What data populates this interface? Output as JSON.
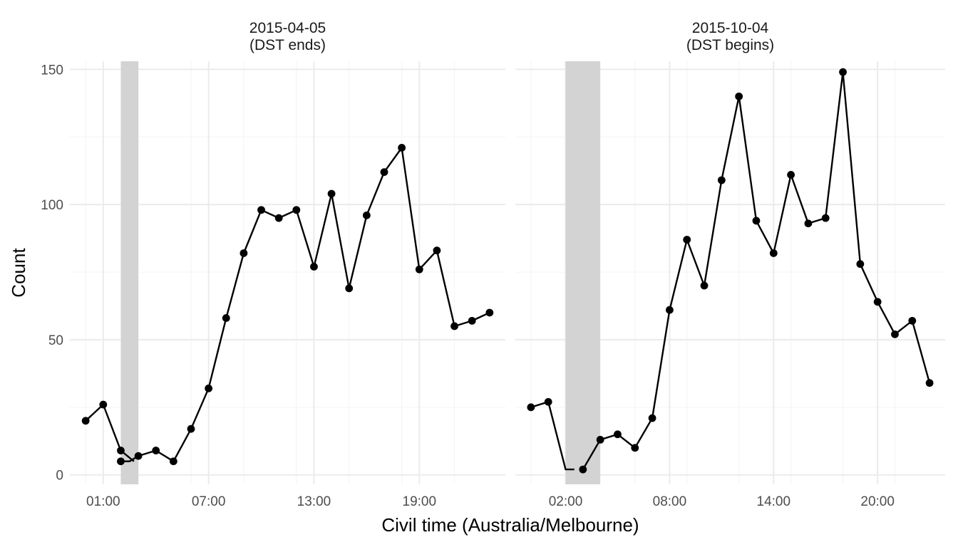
{
  "chart_data": {
    "type": "line",
    "xlabel": "Civil time (Australia/Melbourne)",
    "ylabel": "Count",
    "ylim": [
      -3.5,
      153
    ],
    "yticks": [
      0,
      50,
      100,
      150
    ],
    "grid": true,
    "colors": {
      "line": "#000000",
      "point": "#000000",
      "band": "#d3d3d3",
      "major_grid": "#ebebeb",
      "minor_grid": "#f5f5f5"
    },
    "panels": [
      {
        "strip": [
          "2015-04-05",
          "(DST ends)"
        ],
        "x_range": [
          "2015-04-05 00:00",
          "2015-04-05 23:00"
        ],
        "x_ticks": [
          "01:00",
          "07:00",
          "13:00",
          "19:00"
        ],
        "shaded_interval": [
          "02:00",
          "03:00"
        ],
        "series": [
          {
            "segments": [
              [
                {
                  "x": "00:00",
                  "y": 20
                },
                {
                  "x": "01:00",
                  "y": 26
                },
                {
                  "x": "02:00",
                  "y": 9
                },
                {
                  "x": "02:45",
                  "y": 5
                }
              ],
              [
                {
                  "x": "02:00",
                  "y": 5
                },
                {
                  "x": "02:30",
                  "y": 5
                },
                {
                  "x": "03:00",
                  "y": 7
                },
                {
                  "x": "04:00",
                  "y": 9
                },
                {
                  "x": "05:00",
                  "y": 5
                },
                {
                  "x": "06:00",
                  "y": 17
                },
                {
                  "x": "07:00",
                  "y": 32
                },
                {
                  "x": "08:00",
                  "y": 58
                },
                {
                  "x": "09:00",
                  "y": 82
                },
                {
                  "x": "10:00",
                  "y": 98
                },
                {
                  "x": "11:00",
                  "y": 95
                },
                {
                  "x": "12:00",
                  "y": 98
                },
                {
                  "x": "13:00",
                  "y": 77
                },
                {
                  "x": "14:00",
                  "y": 104
                },
                {
                  "x": "15:00",
                  "y": 69
                },
                {
                  "x": "16:00",
                  "y": 96
                },
                {
                  "x": "17:00",
                  "y": 112
                },
                {
                  "x": "18:00",
                  "y": 121
                },
                {
                  "x": "19:00",
                  "y": 76
                },
                {
                  "x": "20:00",
                  "y": 83
                },
                {
                  "x": "21:00",
                  "y": 55
                },
                {
                  "x": "22:00",
                  "y": 57
                },
                {
                  "x": "23:00",
                  "y": 60
                }
              ]
            ],
            "points": [
              {
                "x": "00:00",
                "y": 20
              },
              {
                "x": "01:00",
                "y": 26
              },
              {
                "x": "02:00",
                "y": 9
              },
              {
                "x": "02:00",
                "y": 5
              },
              {
                "x": "03:00",
                "y": 7
              },
              {
                "x": "04:00",
                "y": 9
              },
              {
                "x": "05:00",
                "y": 5
              },
              {
                "x": "06:00",
                "y": 17
              },
              {
                "x": "07:00",
                "y": 32
              },
              {
                "x": "08:00",
                "y": 58
              },
              {
                "x": "09:00",
                "y": 82
              },
              {
                "x": "10:00",
                "y": 98
              },
              {
                "x": "11:00",
                "y": 95
              },
              {
                "x": "12:00",
                "y": 98
              },
              {
                "x": "13:00",
                "y": 77
              },
              {
                "x": "14:00",
                "y": 104
              },
              {
                "x": "15:00",
                "y": 69
              },
              {
                "x": "16:00",
                "y": 96
              },
              {
                "x": "17:00",
                "y": 112
              },
              {
                "x": "18:00",
                "y": 121
              },
              {
                "x": "19:00",
                "y": 76
              },
              {
                "x": "20:00",
                "y": 83
              },
              {
                "x": "21:00",
                "y": 55
              },
              {
                "x": "22:00",
                "y": 57
              },
              {
                "x": "23:00",
                "y": 60
              }
            ]
          }
        ]
      },
      {
        "strip": [
          "2015-10-04",
          "(DST begins)"
        ],
        "x_range": [
          "2015-10-04 00:00",
          "2015-10-04 23:00"
        ],
        "x_ticks": [
          "02:00",
          "08:00",
          "14:00",
          "20:00"
        ],
        "shaded_interval": [
          "02:00",
          "04:00"
        ],
        "series": [
          {
            "segments": [
              [
                {
                  "x": "00:00",
                  "y": 25
                },
                {
                  "x": "01:00",
                  "y": 27
                },
                {
                  "x": "02:00",
                  "y": 2
                },
                {
                  "x": "02:30",
                  "y": 2
                }
              ],
              [
                {
                  "x": "03:00",
                  "y": 2
                },
                {
                  "x": "04:00",
                  "y": 13
                },
                {
                  "x": "05:00",
                  "y": 15
                },
                {
                  "x": "06:00",
                  "y": 10
                },
                {
                  "x": "07:00",
                  "y": 21
                },
                {
                  "x": "08:00",
                  "y": 61
                },
                {
                  "x": "09:00",
                  "y": 87
                },
                {
                  "x": "10:00",
                  "y": 70
                },
                {
                  "x": "11:00",
                  "y": 109
                },
                {
                  "x": "12:00",
                  "y": 140
                },
                {
                  "x": "13:00",
                  "y": 94
                },
                {
                  "x": "14:00",
                  "y": 82
                },
                {
                  "x": "15:00",
                  "y": 111
                },
                {
                  "x": "16:00",
                  "y": 93
                },
                {
                  "x": "17:00",
                  "y": 95
                },
                {
                  "x": "18:00",
                  "y": 149
                },
                {
                  "x": "19:00",
                  "y": 78
                },
                {
                  "x": "20:00",
                  "y": 64
                },
                {
                  "x": "21:00",
                  "y": 52
                },
                {
                  "x": "22:00",
                  "y": 57
                },
                {
                  "x": "23:00",
                  "y": 34
                }
              ]
            ],
            "points": [
              {
                "x": "00:00",
                "y": 25
              },
              {
                "x": "01:00",
                "y": 27
              },
              {
                "x": "03:00",
                "y": 2
              },
              {
                "x": "04:00",
                "y": 13
              },
              {
                "x": "05:00",
                "y": 15
              },
              {
                "x": "06:00",
                "y": 10
              },
              {
                "x": "07:00",
                "y": 21
              },
              {
                "x": "08:00",
                "y": 61
              },
              {
                "x": "09:00",
                "y": 87
              },
              {
                "x": "10:00",
                "y": 70
              },
              {
                "x": "11:00",
                "y": 109
              },
              {
                "x": "12:00",
                "y": 140
              },
              {
                "x": "13:00",
                "y": 94
              },
              {
                "x": "14:00",
                "y": 82
              },
              {
                "x": "15:00",
                "y": 111
              },
              {
                "x": "16:00",
                "y": 93
              },
              {
                "x": "17:00",
                "y": 95
              },
              {
                "x": "18:00",
                "y": 149
              },
              {
                "x": "19:00",
                "y": 78
              },
              {
                "x": "20:00",
                "y": 64
              },
              {
                "x": "21:00",
                "y": 52
              },
              {
                "x": "22:00",
                "y": 57
              },
              {
                "x": "23:00",
                "y": 34
              }
            ]
          }
        ]
      }
    ]
  }
}
